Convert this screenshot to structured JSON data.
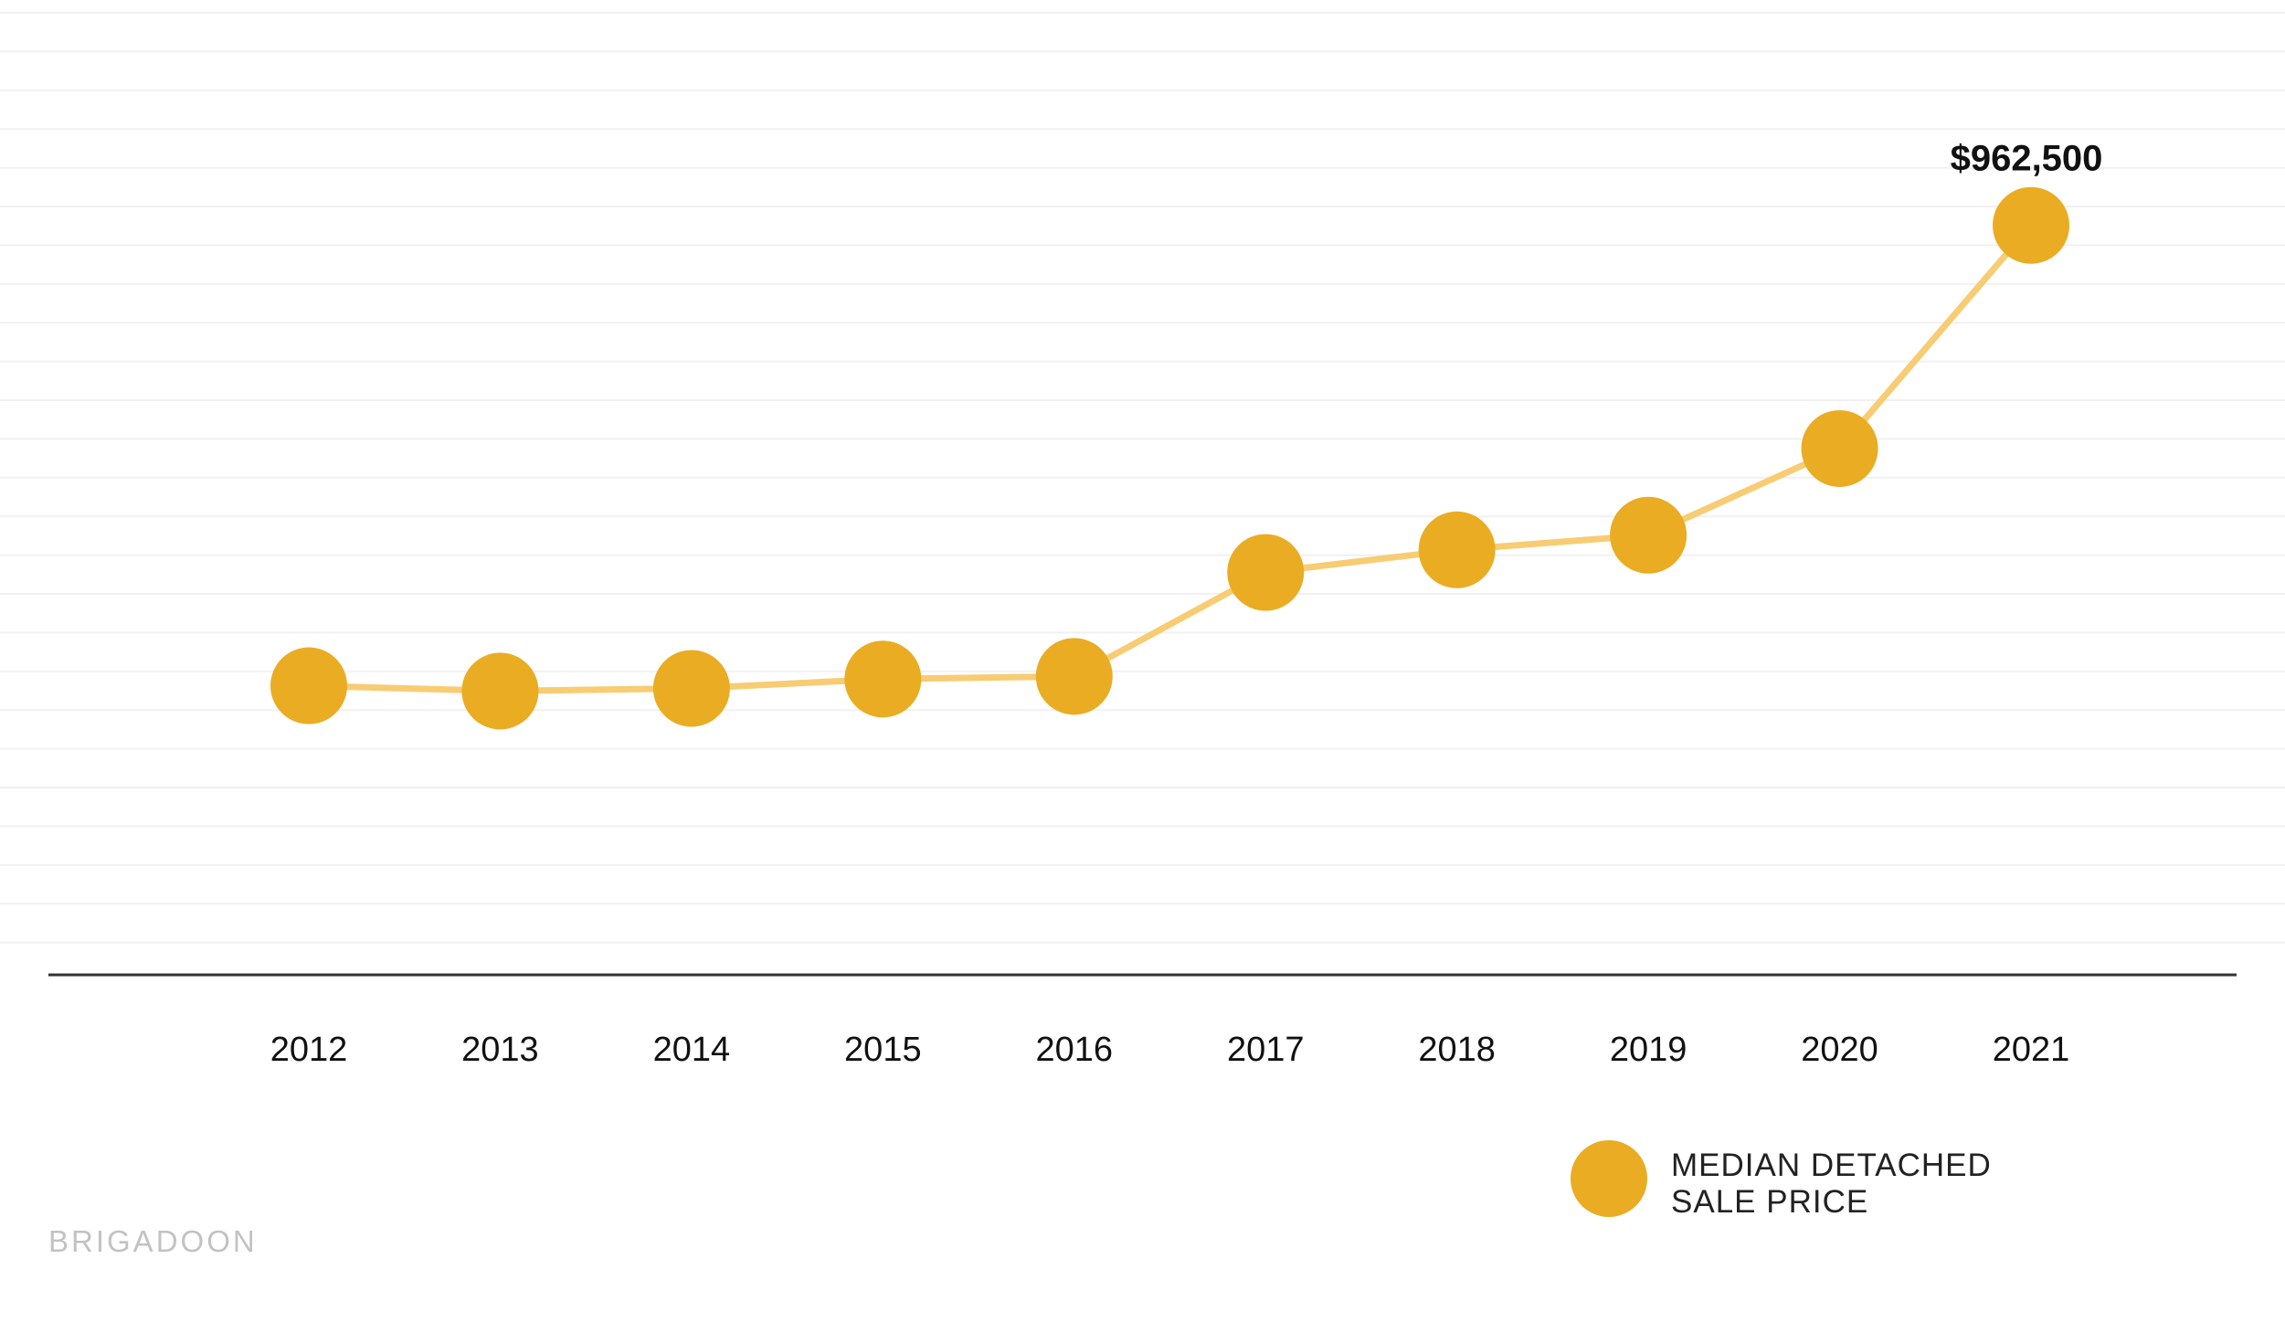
{
  "chart_data": {
    "type": "line",
    "categories": [
      "2012",
      "2013",
      "2014",
      "2015",
      "2016",
      "2017",
      "2018",
      "2019",
      "2020",
      "2021"
    ],
    "series": [
      {
        "name": "MEDIAN DETACHED SALE PRICE",
        "values": [
          617000,
          613000,
          615000,
          622000,
          624000,
          702000,
          719000,
          730000,
          795000,
          962500
        ]
      }
    ],
    "annotations": [
      {
        "category": "2021",
        "text": "$962,500"
      }
    ],
    "title": "",
    "xlabel": "",
    "ylabel": "",
    "ylim": [
      400000,
      1000000
    ],
    "grid": true,
    "legend_position": "bottom-right",
    "colors": {
      "marker": "#EAAC22",
      "line": "#F8CC73",
      "grid": "#F1F1F1",
      "axis": "#333333"
    }
  },
  "legend": {
    "label_line1": "MEDIAN DETACHED",
    "label_line2": "SALE PRICE"
  },
  "watermark": "BRIGADOON"
}
